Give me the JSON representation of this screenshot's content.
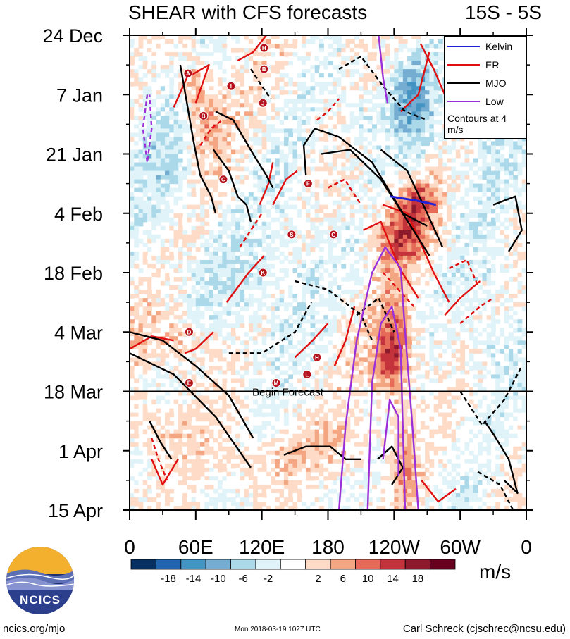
{
  "title": {
    "left": "SHEAR with CFS forecasts",
    "right": "15S - 5S"
  },
  "chart_data": {
    "type": "heatmap",
    "variable": "SHEAR",
    "latitude_band": "15S - 5S",
    "xlabel": "",
    "ylabel": "",
    "x_ticks": [
      {
        "label": "0",
        "lon": 0
      },
      {
        "label": "60E",
        "lon": 60
      },
      {
        "label": "120E",
        "lon": 120
      },
      {
        "label": "180",
        "lon": 180
      },
      {
        "label": "120W",
        "lon": 240
      },
      {
        "label": "60W",
        "lon": 300
      },
      {
        "label": "0",
        "lon": 360
      }
    ],
    "y_ticks": [
      {
        "label": "24 Dec",
        "day": 0
      },
      {
        "label": "7 Jan",
        "day": 14
      },
      {
        "label": "21 Jan",
        "day": 28
      },
      {
        "label": "4 Feb",
        "day": 42
      },
      {
        "label": "18 Feb",
        "day": 56
      },
      {
        "label": "4 Mar",
        "day": 70
      },
      {
        "label": "18 Mar",
        "day": 84
      },
      {
        "label": "1 Apr",
        "day": 98
      },
      {
        "label": "15 Apr",
        "day": 112
      }
    ],
    "xlim": [
      0,
      360
    ],
    "ylim_days": [
      0,
      112
    ],
    "forecast_start": {
      "label": "Begin Forecast",
      "date": "18 Mar"
    },
    "colorbar": {
      "units": "m/s",
      "labels": [
        "-18",
        "-14",
        "-10",
        "-6",
        "-2",
        "2",
        "6",
        "10",
        "14",
        "18"
      ],
      "colors": [
        "#053061",
        "#2166ac",
        "#4393c3",
        "#74add1",
        "#abd9e9",
        "#e0f3f8",
        "#ffffff",
        "#fddbc7",
        "#f4a582",
        "#e56b58",
        "#c4323b",
        "#8b1a2c",
        "#67001f"
      ]
    },
    "legend": {
      "items": [
        {
          "name": "Kelvin",
          "color": "#1f1fd6"
        },
        {
          "name": "ER",
          "color": "#e01010"
        },
        {
          "name": "MJO",
          "color": "#000000"
        },
        {
          "name": "Low",
          "color": "#9b30d8"
        }
      ],
      "note": "Contours at 4 m/s",
      "position": "top-right"
    },
    "storms": [
      {
        "letter": "H",
        "lon": 122,
        "day": 3
      },
      {
        "letter": "A",
        "lon": 53,
        "day": 9
      },
      {
        "letter": "B",
        "lon": 122,
        "day": 8
      },
      {
        "letter": "I",
        "lon": 92,
        "day": 12
      },
      {
        "letter": "J",
        "lon": 121,
        "day": 16
      },
      {
        "letter": "B",
        "lon": 67,
        "day": 19
      },
      {
        "letter": "C",
        "lon": 85,
        "day": 34
      },
      {
        "letter": "F",
        "lon": 162,
        "day": 35
      },
      {
        "letter": "S",
        "lon": 147,
        "day": 47
      },
      {
        "letter": "G",
        "lon": 185,
        "day": 47
      },
      {
        "letter": "K",
        "lon": 121,
        "day": 56
      },
      {
        "letter": "D",
        "lon": 54,
        "day": 70
      },
      {
        "letter": "H",
        "lon": 170,
        "day": 76
      },
      {
        "letter": "L",
        "lon": 161,
        "day": 80
      },
      {
        "letter": "E",
        "lon": 54,
        "day": 82
      },
      {
        "letter": "M",
        "lon": 133,
        "day": 82
      }
    ],
    "contours": {
      "mjo": [
        {
          "pts": [
            [
              46,
              7
            ],
            [
              58,
              25
            ],
            [
              64,
              33
            ],
            [
              74,
              38
            ],
            [
              78,
              42
            ]
          ]
        },
        {
          "pts": [
            [
              76,
              27
            ],
            [
              90,
              32
            ],
            [
              98,
              38
            ],
            [
              106,
              40
            ],
            [
              110,
              44
            ]
          ]
        },
        {
          "pts": [
            [
              78,
              18
            ],
            [
              94,
              20
            ],
            [
              112,
              28
            ],
            [
              124,
              33
            ],
            [
              130,
              36
            ]
          ]
        },
        {
          "pts": [
            [
              0,
              70
            ],
            [
              30,
              72
            ],
            [
              60,
              78
            ],
            [
              90,
              85
            ],
            [
              112,
              95
            ]
          ]
        },
        {
          "pts": [
            [
              0,
              75
            ],
            [
              40,
              80
            ],
            [
              78,
              90
            ],
            [
              110,
              102
            ]
          ]
        },
        {
          "pts": [
            [
              18,
              91
            ],
            [
              28,
              96
            ],
            [
              38,
              100
            ]
          ]
        },
        {
          "pts": [
            [
              140,
              99
            ],
            [
              160,
              97
            ],
            [
              182,
              97
            ],
            [
              196,
              100
            ],
            [
              210,
              100
            ]
          ]
        },
        {
          "pts": [
            [
              160,
              33
            ],
            [
              158,
              26
            ],
            [
              168,
              22
            ],
            [
              190,
              24
            ],
            [
              220,
              30
            ],
            [
              248,
              42
            ],
            [
              270,
              45
            ]
          ]
        },
        {
          "pts": [
            [
              174,
              28
            ],
            [
              200,
              27
            ],
            [
              228,
              34
            ],
            [
              260,
              47
            ],
            [
              272,
              52
            ]
          ]
        },
        {
          "pts": [
            [
              228,
              27
            ],
            [
              252,
              32
            ],
            [
              270,
              42
            ],
            [
              284,
              50
            ]
          ]
        },
        {
          "pts": [
            [
              225,
              100
            ],
            [
              238,
              97
            ],
            [
              248,
              102
            ],
            [
              238,
              106
            ]
          ]
        },
        {
          "pts": [
            [
              322,
              91
            ],
            [
              330,
              94
            ],
            [
              344,
              100
            ],
            [
              352,
              108
            ],
            [
              340,
              105
            ]
          ]
        },
        {
          "pts": [
            [
              330,
              40
            ],
            [
              350,
              38
            ],
            [
              356,
              46
            ],
            [
              344,
              51
            ]
          ]
        }
      ],
      "mjo_neg": [
        {
          "pts": [
            [
              110,
              8
            ],
            [
              120,
              12
            ],
            [
              128,
              15
            ]
          ]
        },
        {
          "pts": [
            [
              190,
              8
            ],
            [
              210,
              5
            ],
            [
              230,
              12
            ],
            [
              250,
              18
            ],
            [
              270,
              20
            ]
          ]
        },
        {
          "pts": [
            [
              150,
              58
            ],
            [
              180,
              60
            ],
            [
              210,
              66
            ],
            [
              220,
              72
            ]
          ]
        },
        {
          "pts": [
            [
              90,
              75
            ],
            [
              120,
              75
            ],
            [
              150,
              70
            ],
            [
              165,
              63
            ]
          ]
        },
        {
          "pts": [
            [
              300,
              84
            ],
            [
              320,
              92
            ],
            [
              340,
              86
            ],
            [
              356,
              78
            ]
          ]
        },
        {
          "pts": [
            [
              316,
              103
            ],
            [
              336,
              106
            ],
            [
              350,
              113
            ]
          ]
        },
        {
          "pts": [
            [
              206,
              66
            ],
            [
              226,
              62
            ],
            [
              240,
              70
            ]
          ]
        }
      ],
      "er": [
        {
          "pts": [
            [
              40,
              17
            ],
            [
              52,
              10
            ],
            [
              72,
              7
            ],
            [
              60,
              16
            ]
          ]
        },
        {
          "pts": [
            [
              98,
              6
            ],
            [
              112,
              4
            ],
            [
              124,
              0
            ]
          ]
        },
        {
          "pts": [
            [
              130,
              40
            ],
            [
              142,
              34
            ],
            [
              152,
              32
            ]
          ]
        },
        {
          "pts": [
            [
              118,
              40
            ],
            [
              126,
              35
            ],
            [
              130,
              30
            ]
          ]
        },
        {
          "pts": [
            [
              212,
              46
            ],
            [
              228,
              44
            ],
            [
              245,
              55
            ],
            [
              262,
              62
            ]
          ]
        },
        {
          "pts": [
            [
              230,
              40
            ],
            [
              252,
              42
            ],
            [
              276,
              56
            ],
            [
              290,
              63
            ]
          ]
        },
        {
          "pts": [
            [
              88,
              63
            ],
            [
              108,
              56
            ],
            [
              122,
              52
            ]
          ]
        },
        {
          "pts": [
            [
              0,
              74
            ],
            [
              20,
              71
            ],
            [
              40,
              72
            ]
          ]
        },
        {
          "pts": [
            [
              50,
              75
            ],
            [
              60,
              74
            ],
            [
              76,
              70
            ]
          ]
        },
        {
          "pts": [
            [
              20,
              100
            ],
            [
              30,
              106
            ],
            [
              44,
              100
            ]
          ]
        },
        {
          "pts": [
            [
              265,
              105
            ],
            [
              280,
              110
            ],
            [
              296,
              107
            ]
          ]
        },
        {
          "pts": [
            [
              286,
              66
            ],
            [
              300,
              62
            ],
            [
              318,
              58
            ]
          ]
        },
        {
          "pts": [
            [
              264,
              2
            ],
            [
              276,
              8
            ],
            [
              286,
              14
            ]
          ]
        },
        {
          "pts": [
            [
              246,
              18
            ],
            [
              262,
              14
            ],
            [
              272,
              4
            ]
          ]
        },
        {
          "pts": [
            [
              186,
              78
            ],
            [
              196,
              72
            ],
            [
              204,
              64
            ]
          ]
        },
        {
          "pts": [
            [
              150,
              76
            ],
            [
              166,
              72
            ],
            [
              180,
              68
            ]
          ]
        }
      ],
      "er_neg": [
        {
          "pts": [
            [
              170,
              20
            ],
            [
              180,
              18
            ],
            [
              190,
              15
            ]
          ]
        },
        {
          "pts": [
            [
              180,
              36
            ],
            [
              195,
              34
            ],
            [
              210,
              40
            ]
          ]
        },
        {
          "pts": [
            [
              290,
              55
            ],
            [
              306,
              53
            ],
            [
              316,
              59
            ]
          ]
        },
        {
          "pts": [
            [
              20,
              95
            ],
            [
              26,
              100
            ],
            [
              34,
              105
            ]
          ]
        },
        {
          "pts": [
            [
              300,
              68
            ],
            [
              318,
              64
            ],
            [
              330,
              62
            ]
          ]
        },
        {
          "pts": [
            [
              100,
              50
            ],
            [
              110,
              46
            ],
            [
              120,
              42
            ]
          ]
        },
        {
          "pts": [
            [
              64,
              26
            ],
            [
              74,
              22
            ],
            [
              84,
              20
            ]
          ]
        },
        {
          "pts": [
            [
              230,
              56
            ],
            [
              244,
              60
            ],
            [
              258,
              64
            ]
          ]
        }
      ],
      "low": [
        {
          "pts": [
            [
              190,
              112
            ],
            [
              196,
              92
            ],
            [
              206,
              72
            ],
            [
              220,
              56
            ],
            [
              232,
              50
            ],
            [
              246,
              55
            ],
            [
              250,
              70
            ],
            [
              256,
              90
            ],
            [
              262,
              112
            ]
          ]
        },
        {
          "pts": [
            [
              216,
              112
            ],
            [
              220,
              82
            ],
            [
              228,
              68
            ],
            [
              238,
              64
            ],
            [
              246,
              74
            ],
            [
              250,
              112
            ]
          ]
        },
        {
          "pts": [
            [
              230,
              100
            ],
            [
              236,
              86
            ],
            [
              244,
              90
            ],
            [
              244,
              104
            ]
          ]
        },
        {
          "pts": [
            [
              226,
              0
            ],
            [
              230,
              10
            ],
            [
              234,
              16
            ]
          ]
        }
      ],
      "low_neg": [
        {
          "pts": [
            [
              16,
              14
            ],
            [
              12,
              22
            ],
            [
              16,
              30
            ],
            [
              20,
              22
            ],
            [
              18,
              14
            ]
          ]
        }
      ],
      "kelvin": [
        {
          "pts": [
            [
              236,
              38
            ],
            [
              260,
              39
            ],
            [
              278,
              40
            ]
          ]
        }
      ]
    }
  },
  "footer": {
    "left": "ncics.org/mjo",
    "mid": "Mon 2018-03-19 1027 UTC",
    "right": "Carl Schreck (cjschrec@ncsu.edu)",
    "logo": "NCICS"
  }
}
